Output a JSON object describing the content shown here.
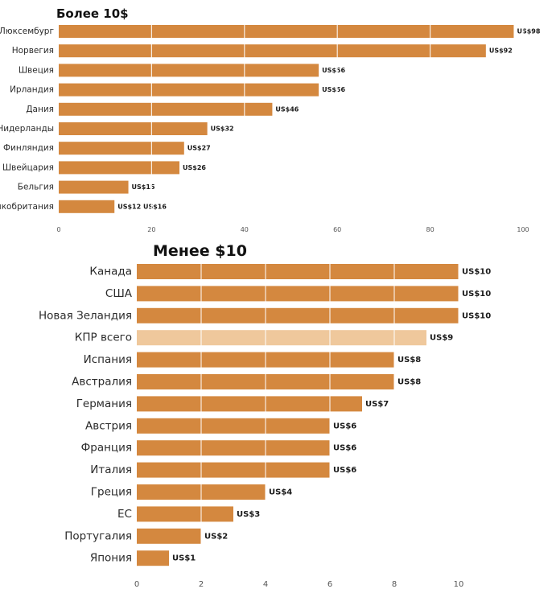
{
  "chart_data": [
    {
      "type": "bar",
      "orientation": "horizontal",
      "title": "Более 10$",
      "categories": [
        "Люксембург",
        "Норвегия",
        "Швеция",
        "Ирландия",
        "Дания",
        "Нидерланды",
        "Финляндия",
        "Швейцария",
        "Бельгия",
        "Великобритания"
      ],
      "values": [
        98,
        92,
        56,
        56,
        46,
        32,
        27,
        26,
        15,
        12
      ],
      "value_labels": [
        "US$98",
        "US$92",
        "US$56",
        "US$56",
        "US$46",
        "US$32",
        "US$27",
        "US$26",
        "US$15",
        "US$12 US$16"
      ],
      "xlim": [
        0,
        100
      ],
      "xticks": [
        0,
        20,
        40,
        60,
        80,
        100
      ],
      "xlabel": "",
      "ylabel": "",
      "grid": true,
      "colors": {
        "bar": "#d4883f",
        "grid": "#ffffff",
        "highlight": "#efc89c"
      }
    },
    {
      "type": "bar",
      "orientation": "horizontal",
      "title": "Менее $10",
      "categories": [
        "Канада",
        "США",
        "Новая Зеландия",
        "КПР всего",
        "Испания",
        "Австралия",
        "Германия",
        "Австрия",
        "Франция",
        "Италия",
        "Греция",
        "ЕС",
        "Португалия",
        "Япония"
      ],
      "values": [
        10,
        10,
        10,
        9,
        8,
        8,
        7,
        6,
        6,
        6,
        4,
        3,
        2,
        1
      ],
      "value_labels": [
        "US$10",
        "US$10",
        "US$10",
        "US$9",
        "US$8",
        "US$8",
        "US$7",
        "US$6",
        "US$6",
        "US$6",
        "US$4",
        "US$3",
        "US$2",
        "US$1"
      ],
      "highlight_index": 3,
      "xlim": [
        0,
        12
      ],
      "xticks": [
        0,
        2,
        4,
        6,
        8,
        10
      ],
      "xlabel": "",
      "ylabel": "",
      "grid": true,
      "colors": {
        "bar": "#d4883f",
        "grid": "#ffffff",
        "highlight": "#efc89c"
      }
    }
  ]
}
